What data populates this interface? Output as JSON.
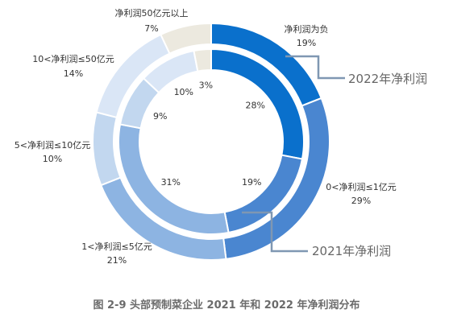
{
  "caption": "图 2-9  头部预制菜企业 2021 年和 2022 年净利润分布",
  "chart_data": {
    "type": "pie",
    "subtype": "nested-donut",
    "categories": [
      "净利润为负",
      "0<净利润≤1亿元",
      "1<净利润≤5亿元",
      "5<净利润≤10亿元",
      "10<净利润≤50亿元",
      "净利润50亿元以上"
    ],
    "series": [
      {
        "name": "2022年净利润",
        "ring": "outer",
        "values": [
          19,
          29,
          21,
          10,
          14,
          7
        ]
      },
      {
        "name": "2021年净利润",
        "ring": "inner",
        "values": [
          28,
          19,
          31,
          9,
          10,
          3
        ]
      }
    ],
    "value_suffix": "%",
    "colors": [
      "#0a70cc",
      "#4a86d0",
      "#8db4e2",
      "#c2d7ef",
      "#dae6f6",
      "#ece9df"
    ]
  }
}
